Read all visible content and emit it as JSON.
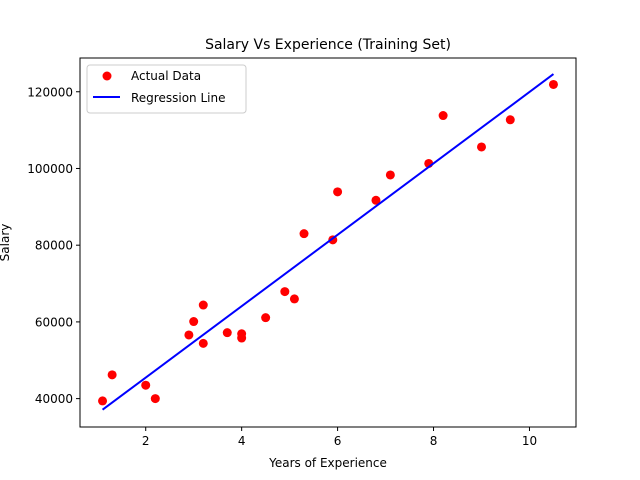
{
  "chart_data": {
    "type": "scatter",
    "title": "Salary Vs Experience (Training Set)",
    "xlabel": "Years of Experience",
    "ylabel": "Salary",
    "xlim": [
      0.63,
      10.97
    ],
    "ylim": [
      32600,
      128800
    ],
    "xticks": [
      2,
      4,
      6,
      8,
      10
    ],
    "xtick_labels": [
      "2",
      "4",
      "6",
      "8",
      "10"
    ],
    "yticks": [
      40000,
      60000,
      80000,
      100000,
      120000
    ],
    "ytick_labels": [
      "40000",
      "60000",
      "80000",
      "100000",
      "120000"
    ],
    "grid": false,
    "legend": {
      "position": "top-left",
      "entries": [
        {
          "label": "Actual Data",
          "marker": "circle",
          "color": "#ff0000"
        },
        {
          "label": "Regression Line",
          "marker": "line",
          "color": "#0000ff"
        }
      ]
    },
    "series": [
      {
        "name": "Actual Data",
        "kind": "scatter",
        "color": "#ff0000",
        "points": [
          [
            1.1,
            39400
          ],
          [
            1.3,
            46200
          ],
          [
            2.0,
            43500
          ],
          [
            2.2,
            40000
          ],
          [
            2.9,
            56600
          ],
          [
            3.0,
            60100
          ],
          [
            3.2,
            54400
          ],
          [
            3.2,
            64400
          ],
          [
            3.7,
            57200
          ],
          [
            4.0,
            56900
          ],
          [
            4.0,
            55800
          ],
          [
            4.5,
            61100
          ],
          [
            4.9,
            67900
          ],
          [
            5.1,
            66000
          ],
          [
            5.3,
            83000
          ],
          [
            5.9,
            81400
          ],
          [
            6.0,
            93900
          ],
          [
            6.8,
            91700
          ],
          [
            7.1,
            98300
          ],
          [
            7.9,
            101300
          ],
          [
            8.2,
            113800
          ],
          [
            9.0,
            105600
          ],
          [
            9.6,
            112700
          ],
          [
            10.5,
            121900
          ]
        ]
      },
      {
        "name": "Regression Line",
        "kind": "line",
        "color": "#0000ff",
        "points": [
          [
            1.1,
            37100
          ],
          [
            10.5,
            124600
          ]
        ]
      }
    ]
  }
}
